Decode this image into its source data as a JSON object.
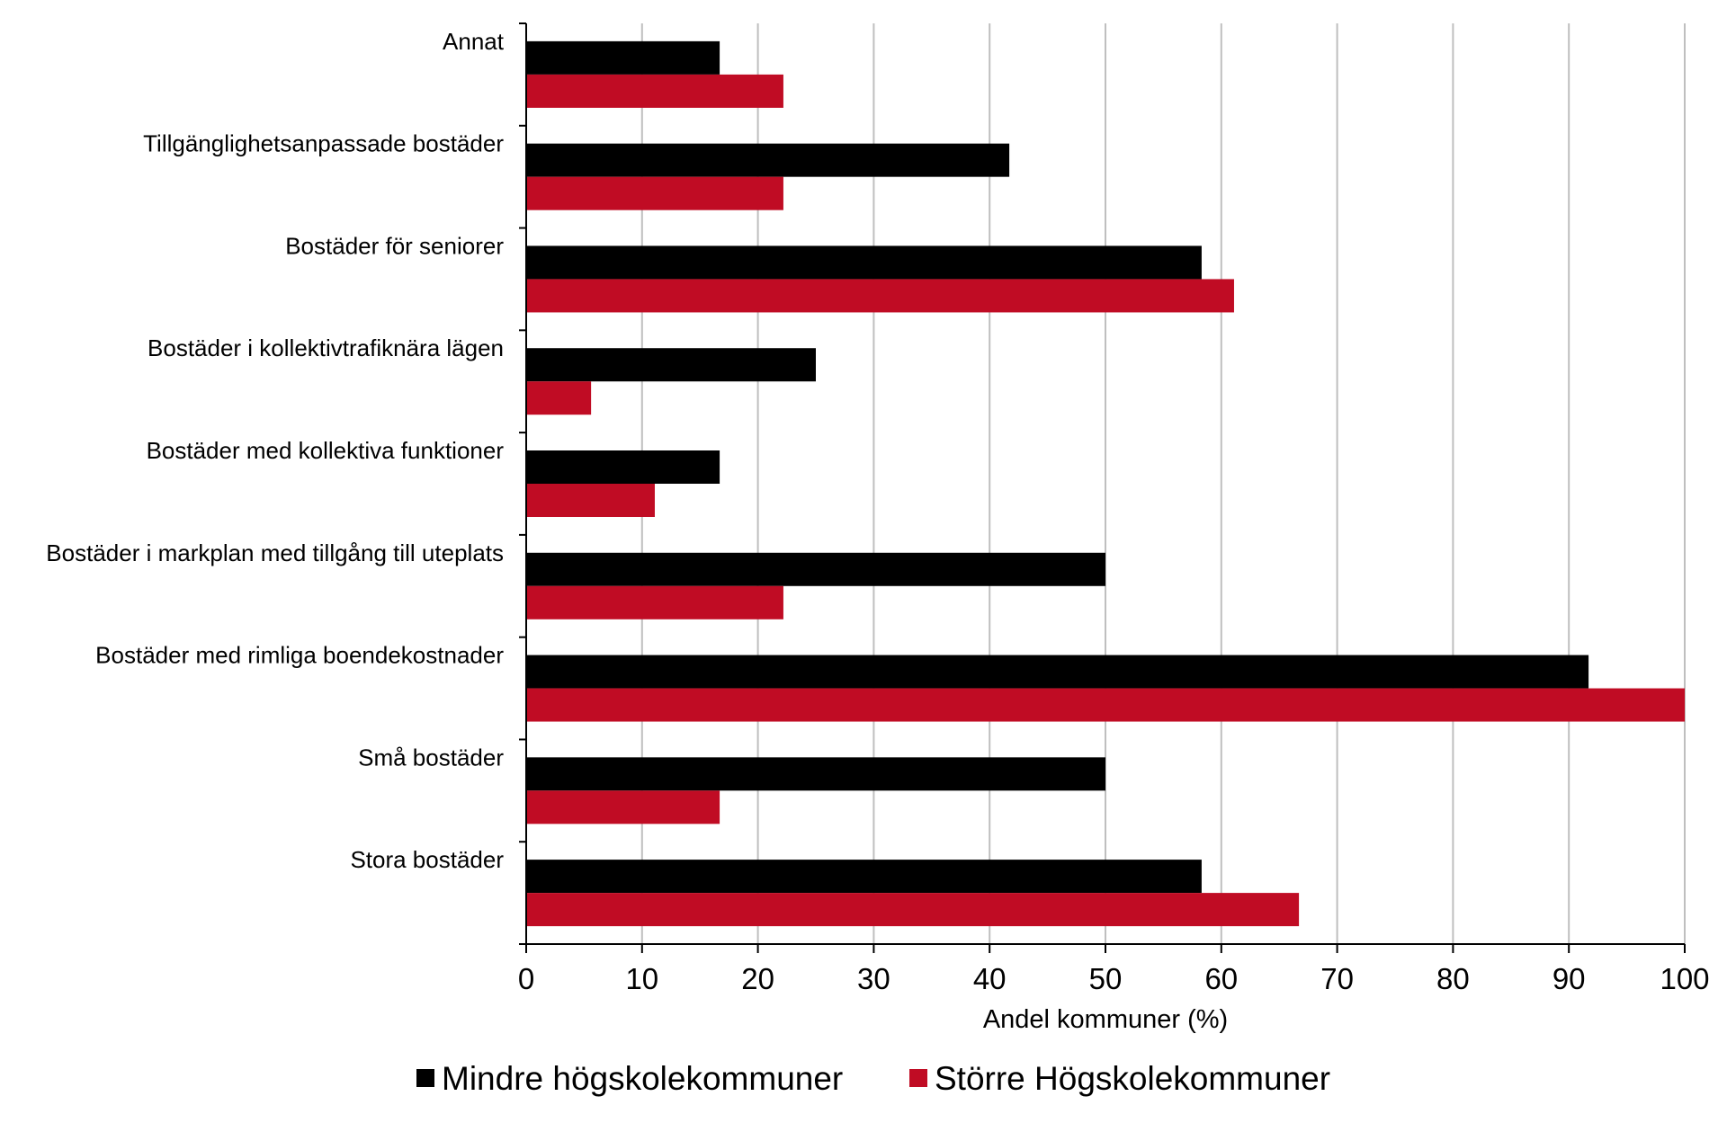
{
  "chart_data": {
    "type": "bar",
    "orientation": "horizontal",
    "categories": [
      "Annat",
      "Tillgänglighetsanpassade bostäder",
      "Bostäder för seniorer",
      "Bostäder i kollektivtrafiknära lägen",
      "Bostäder med kollektiva funktioner",
      "Bostäder i markplan med tillgång till uteplats",
      "Bostäder med rimliga boendekostnader",
      "Små bostäder",
      "Stora bostäder"
    ],
    "series": [
      {
        "name": "Mindre högskolekommuner",
        "color": "#000000",
        "values": [
          16.7,
          41.7,
          58.3,
          25.0,
          16.7,
          50.0,
          91.7,
          50.0,
          58.3
        ]
      },
      {
        "name": "Större Högskolekommuner",
        "color": "#c00c24",
        "values": [
          22.2,
          22.2,
          61.1,
          5.6,
          11.1,
          22.2,
          100.0,
          16.7,
          66.7
        ]
      }
    ],
    "xlabel": "Andel kommuner (%)",
    "ylabel": "",
    "xlim": [
      0,
      100
    ],
    "xticks": [
      "0",
      "10",
      "20",
      "30",
      "40",
      "50",
      "60",
      "70",
      "80",
      "90",
      "100"
    ],
    "grid": "vertical",
    "gridColor": "#bfbfbf",
    "legend": "bottom"
  }
}
